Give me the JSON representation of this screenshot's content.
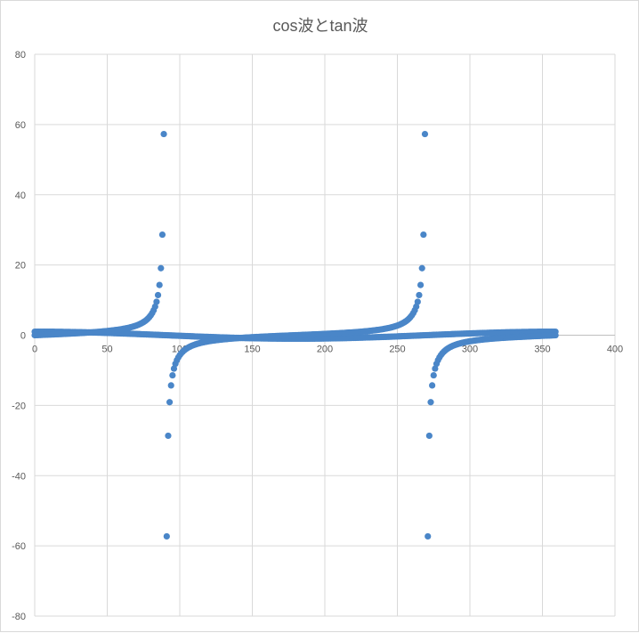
{
  "chart_data": {
    "type": "scatter",
    "title": "cos波とtan波",
    "xlabel": "",
    "ylabel": "",
    "xlim": [
      0,
      400
    ],
    "ylim": [
      -80,
      80
    ],
    "x_ticks": [
      0,
      50,
      100,
      150,
      200,
      250,
      300,
      350,
      400
    ],
    "y_ticks": [
      80,
      60,
      40,
      20,
      0,
      -20,
      -40,
      -60,
      -80
    ],
    "grid": true,
    "legend": "none",
    "marker_color": "#4a86c8",
    "series": [
      {
        "function": "cos",
        "x_range_deg": [
          0,
          359
        ],
        "x_step_deg": 1,
        "x": [
          0,
          30,
          60,
          90,
          120,
          150,
          180,
          210,
          240,
          270,
          300,
          330,
          359
        ],
        "values": [
          1,
          0.87,
          0.5,
          0,
          -0.5,
          -0.87,
          -1,
          -0.87,
          -0.5,
          0,
          0.5,
          0.87,
          1
        ]
      },
      {
        "function": "tan",
        "x_range_deg": [
          0,
          359
        ],
        "x_step_deg": 1,
        "x": [
          0,
          45,
          80,
          85,
          88,
          89,
          91,
          92,
          95,
          100,
          135,
          180,
          225,
          260,
          265,
          268,
          269,
          271,
          272,
          275,
          280,
          315,
          359
        ],
        "values": [
          0,
          1,
          5.67,
          11.43,
          28.64,
          57.29,
          -57.29,
          -28.64,
          -11.43,
          -5.67,
          -1,
          0,
          1,
          5.67,
          11.43,
          28.64,
          57.29,
          -57.29,
          -28.64,
          -11.43,
          -5.67,
          -1,
          -0.02
        ]
      }
    ]
  }
}
